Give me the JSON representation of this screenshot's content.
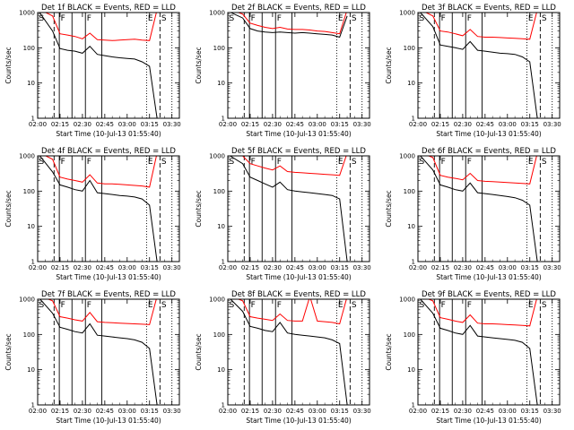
{
  "figure": {
    "start_time_label": "Start Time (10-Jul-13 01:55:40)",
    "y_axis_label": "Counts/sec",
    "x_tick_labels": [
      "02:00",
      "02:15",
      "02:30",
      "02:45",
      "03:00",
      "03:15",
      "03:30"
    ],
    "y_tick_labels": [
      "1",
      "10",
      "100",
      "1000"
    ],
    "colors": {
      "events": "#000000",
      "lld": "#ff0000"
    },
    "event_markers": [
      {
        "label": "S",
        "t": 0.0,
        "style": "solid"
      },
      {
        "label": "F",
        "t": 14.5,
        "style": "solid"
      },
      {
        "label": "F",
        "t": 32.0,
        "style": "solid"
      },
      {
        "label": "E",
        "t": 73.0,
        "style": "dotted"
      },
      {
        "label": "S",
        "t": 82.0,
        "style": "dashed"
      }
    ],
    "extra_lines": [
      {
        "t": 11.0,
        "style": "dashed"
      },
      {
        "t": 23.0,
        "style": "solid"
      },
      {
        "t": 43.0,
        "style": "solid"
      },
      {
        "t": 90.0,
        "style": "dotted"
      }
    ]
  },
  "chart_data": [
    {
      "type": "line",
      "title": "Det 1f BLACK = Events, RED = LLD",
      "xlabel": "Start Time (10-Jul-13 01:55:40)",
      "ylabel": "Counts/sec",
      "xlim": [
        "02:00",
        "03:35"
      ],
      "ylim": [
        1,
        1000
      ],
      "log_y": true,
      "x": [
        "02:00",
        "02:10",
        "02:15",
        "02:20",
        "02:25",
        "02:30",
        "02:35",
        "02:40",
        "02:45",
        "02:50",
        "02:55",
        "03:00",
        "03:05",
        "03:10",
        "03:15",
        "03:20"
      ],
      "series": [
        {
          "name": "BLACK = Events",
          "values": [
            1200,
            300,
            95,
            85,
            80,
            70,
            110,
            65,
            60,
            55,
            52,
            50,
            48,
            40,
            30,
            1
          ]
        },
        {
          "name": "RED = LLD",
          "values": [
            1300,
            800,
            250,
            230,
            210,
            180,
            260,
            170,
            165,
            160,
            165,
            170,
            175,
            165,
            160,
            1200
          ]
        }
      ]
    },
    {
      "type": "line",
      "title": "Det 2f BLACK = Events, RED = LLD",
      "xlabel": "Start Time (10-Jul-13 01:55:40)",
      "ylabel": "Counts/sec",
      "xlim": [
        "02:00",
        "03:35"
      ],
      "ylim": [
        1,
        1000
      ],
      "log_y": true,
      "x": [
        "02:00",
        "02:10",
        "02:15",
        "02:20",
        "02:25",
        "02:30",
        "02:35",
        "02:40",
        "02:45",
        "02:50",
        "02:55",
        "03:00",
        "03:05",
        "03:10",
        "03:15",
        "03:20"
      ],
      "series": [
        {
          "name": "BLACK = Events",
          "values": [
            1100,
            700,
            350,
            300,
            280,
            270,
            280,
            270,
            260,
            270,
            260,
            250,
            240,
            230,
            200,
            800
          ]
        },
        {
          "name": "RED = LLD",
          "values": [
            1300,
            900,
            500,
            430,
            380,
            350,
            380,
            340,
            330,
            330,
            320,
            300,
            290,
            270,
            250,
            1200
          ]
        }
      ]
    },
    {
      "type": "line",
      "title": "Det 3f BLACK = Events, RED = LLD",
      "xlabel": "Start Time (10-Jul-13 01:55:40)",
      "ylabel": "Counts/sec",
      "xlim": [
        "02:00",
        "03:35"
      ],
      "ylim": [
        1,
        1000
      ],
      "log_y": true,
      "x": [
        "02:00",
        "02:10",
        "02:15",
        "02:20",
        "02:25",
        "02:30",
        "02:35",
        "02:40",
        "02:45",
        "02:50",
        "02:55",
        "03:00",
        "03:05",
        "03:10",
        "03:15",
        "03:20"
      ],
      "series": [
        {
          "name": "BLACK = Events",
          "values": [
            1200,
            400,
            120,
            110,
            100,
            90,
            150,
            85,
            80,
            75,
            70,
            68,
            65,
            55,
            40,
            1
          ]
        },
        {
          "name": "RED = LLD",
          "values": [
            1300,
            800,
            300,
            280,
            250,
            220,
            330,
            210,
            200,
            200,
            195,
            190,
            185,
            180,
            175,
            1200
          ]
        }
      ]
    },
    {
      "type": "line",
      "title": "Det 4f BLACK = Events, RED = LLD",
      "xlabel": "Start Time (10-Jul-13 01:55:40)",
      "ylabel": "Counts/sec",
      "xlim": [
        "02:00",
        "03:35"
      ],
      "ylim": [
        1,
        1000
      ],
      "log_y": true,
      "x": [
        "02:00",
        "02:10",
        "02:15",
        "02:20",
        "02:25",
        "02:30",
        "02:35",
        "02:40",
        "02:45",
        "02:50",
        "02:55",
        "03:00",
        "03:05",
        "03:10",
        "03:15",
        "03:20"
      ],
      "series": [
        {
          "name": "BLACK = Events",
          "values": [
            1200,
            350,
            150,
            130,
            110,
            100,
            200,
            90,
            85,
            80,
            75,
            72,
            68,
            60,
            40,
            1
          ]
        },
        {
          "name": "RED = LLD",
          "values": [
            1300,
            800,
            250,
            220,
            200,
            180,
            290,
            170,
            160,
            160,
            155,
            150,
            145,
            140,
            130,
            1200
          ]
        }
      ]
    },
    {
      "type": "line",
      "title": "Det 5f BLACK = Events, RED = LLD",
      "xlabel": "Start Time (10-Jul-13 01:55:40)",
      "ylabel": "Counts/sec",
      "xlim": [
        "02:00",
        "03:35"
      ],
      "ylim": [
        1,
        1000
      ],
      "log_y": true,
      "x": [
        "02:00",
        "02:10",
        "02:15",
        "02:20",
        "02:25",
        "02:30",
        "02:35",
        "02:40",
        "02:45",
        "02:50",
        "02:55",
        "03:00",
        "03:05",
        "03:10",
        "03:15",
        "03:20"
      ],
      "series": [
        {
          "name": "BLACK = Events",
          "values": [
            1100,
            600,
            250,
            200,
            160,
            130,
            180,
            110,
            100,
            95,
            90,
            85,
            80,
            75,
            60,
            1
          ]
        },
        {
          "name": "RED = LLD",
          "values": [
            1300,
            1000,
            600,
            520,
            450,
            400,
            520,
            360,
            340,
            330,
            320,
            310,
            300,
            290,
            280,
            1200
          ]
        }
      ]
    },
    {
      "type": "line",
      "title": "Det 6f BLACK = Events, RED = LLD",
      "xlabel": "Start Time (10-Jul-13 01:55:40)",
      "ylabel": "Counts/sec",
      "xlim": [
        "02:00",
        "03:35"
      ],
      "ylim": [
        1,
        1000
      ],
      "log_y": true,
      "x": [
        "02:00",
        "02:10",
        "02:15",
        "02:20",
        "02:25",
        "02:30",
        "02:35",
        "02:40",
        "02:45",
        "02:50",
        "02:55",
        "03:00",
        "03:05",
        "03:10",
        "03:15",
        "03:20"
      ],
      "series": [
        {
          "name": "BLACK = Events",
          "values": [
            1200,
            400,
            150,
            130,
            110,
            100,
            170,
            90,
            85,
            80,
            75,
            70,
            65,
            55,
            40,
            1
          ]
        },
        {
          "name": "RED = LLD",
          "values": [
            1300,
            900,
            280,
            250,
            230,
            210,
            320,
            200,
            190,
            185,
            180,
            175,
            170,
            165,
            160,
            1200
          ]
        }
      ]
    },
    {
      "type": "line",
      "title": "Det 7f BLACK = Events, RED = LLD",
      "xlabel": "Start Time (10-Jul-13 01:55:40)",
      "ylabel": "Counts/sec",
      "xlim": [
        "02:00",
        "03:35"
      ],
      "ylim": [
        1,
        1000
      ],
      "log_y": true,
      "x": [
        "02:00",
        "02:10",
        "02:15",
        "02:20",
        "02:25",
        "02:30",
        "02:35",
        "02:40",
        "02:45",
        "02:50",
        "02:55",
        "03:00",
        "03:05",
        "03:10",
        "03:15",
        "03:20"
      ],
      "series": [
        {
          "name": "BLACK = Events",
          "values": [
            1200,
            400,
            160,
            140,
            120,
            110,
            200,
            95,
            90,
            85,
            80,
            76,
            70,
            60,
            40,
            1
          ]
        },
        {
          "name": "RED = LLD",
          "values": [
            1300,
            900,
            320,
            290,
            260,
            240,
            420,
            230,
            220,
            215,
            210,
            205,
            200,
            195,
            190,
            1200
          ]
        }
      ]
    },
    {
      "type": "line",
      "title": "Det 8f BLACK = Events, RED = LLD",
      "xlabel": "Start Time (10-Jul-13 01:55:40)",
      "ylabel": "Counts/sec",
      "xlim": [
        "02:00",
        "03:35"
      ],
      "ylim": [
        1,
        1000
      ],
      "log_y": true,
      "x": [
        "02:00",
        "02:10",
        "02:15",
        "02:20",
        "02:25",
        "02:30",
        "02:35",
        "02:40",
        "02:45",
        "02:50",
        "02:55",
        "03:00",
        "03:05",
        "03:10",
        "03:15",
        "03:20"
      ],
      "series": [
        {
          "name": "BLACK = Events",
          "values": [
            1200,
            450,
            170,
            150,
            130,
            120,
            220,
            110,
            100,
            95,
            90,
            85,
            80,
            70,
            55,
            1
          ]
        },
        {
          "name": "RED = LLD",
          "values": [
            1300,
            900,
            320,
            290,
            270,
            250,
            380,
            250,
            240,
            240,
            1200,
            240,
            230,
            220,
            200,
            1200
          ]
        }
      ]
    },
    {
      "type": "line",
      "title": "Det 9f BLACK = Events, RED = LLD",
      "xlabel": "Start Time (10-Jul-13 01:55:40)",
      "ylabel": "Counts/sec",
      "xlim": [
        "02:00",
        "03:35"
      ],
      "ylim": [
        1,
        1000
      ],
      "log_y": true,
      "x": [
        "02:00",
        "02:10",
        "02:15",
        "02:20",
        "02:25",
        "02:30",
        "02:35",
        "02:40",
        "02:45",
        "02:50",
        "02:55",
        "03:00",
        "03:05",
        "03:10",
        "03:15",
        "03:20"
      ],
      "series": [
        {
          "name": "BLACK = Events",
          "values": [
            1200,
            400,
            150,
            130,
            110,
            100,
            180,
            90,
            85,
            80,
            76,
            72,
            68,
            60,
            40,
            1
          ]
        },
        {
          "name": "RED = LLD",
          "values": [
            1300,
            900,
            300,
            270,
            240,
            220,
            360,
            210,
            200,
            200,
            195,
            190,
            185,
            180,
            175,
            1200
          ]
        }
      ]
    }
  ]
}
